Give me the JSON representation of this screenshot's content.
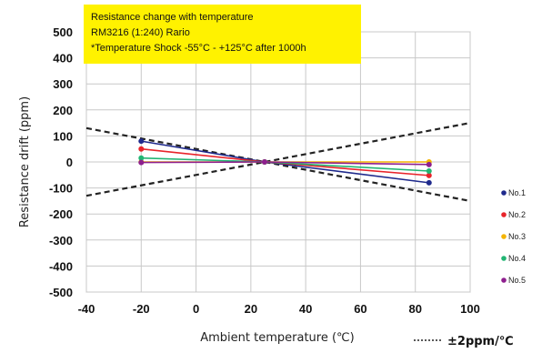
{
  "chart_data": {
    "type": "line",
    "title_lines": [
      "Resistance change with temperature",
      "RM3216 (1:240) Rario",
      "*Temperature Shock -55°C - +125°C after 1000h"
    ],
    "xlabel": "Ambient temperature (℃)",
    "ylabel": "Resistance drift (ppm)",
    "xlim": [
      -40,
      100
    ],
    "ylim": [
      -500,
      500
    ],
    "xticks": [
      "-40",
      "-20",
      "0",
      "20",
      "40",
      "60",
      "80",
      "100"
    ],
    "yticks": [
      "500",
      "400",
      "300",
      "200",
      "100",
      "0",
      "-100",
      "-200",
      "-300",
      "-400",
      "-500"
    ],
    "grid": true,
    "legend_position": "right",
    "series": [
      {
        "name": "No.1",
        "color": "#1f2a8c",
        "x": [
          -20,
          25,
          85
        ],
        "y": [
          80,
          0,
          -80
        ]
      },
      {
        "name": "No.2",
        "color": "#e8242a",
        "x": [
          -20,
          25,
          85
        ],
        "y": [
          50,
          0,
          -52
        ]
      },
      {
        "name": "No.3",
        "color": "#f4b400",
        "x": [
          -20,
          25,
          85
        ],
        "y": [
          0,
          0,
          0
        ]
      },
      {
        "name": "No.4",
        "color": "#22b573",
        "x": [
          -20,
          25,
          85
        ],
        "y": [
          15,
          0,
          -35
        ]
      },
      {
        "name": "No.5",
        "color": "#8e1f8e",
        "x": [
          -20,
          25,
          85
        ],
        "y": [
          -2,
          0,
          -10
        ]
      }
    ],
    "reference_lines": {
      "label": "±2ppm/℃",
      "lines": [
        {
          "x": [
            -40,
            100
          ],
          "y": [
            130,
            -150
          ]
        },
        {
          "x": [
            -40,
            100
          ],
          "y": [
            -130,
            150
          ]
        }
      ]
    }
  }
}
